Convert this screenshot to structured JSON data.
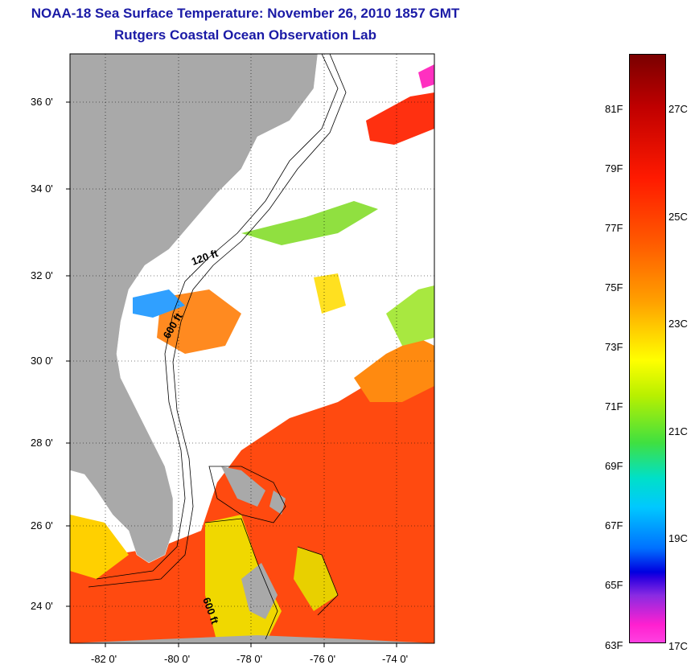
{
  "title": {
    "line1": "NOAA-18 Sea Surface Temperature:  November 26, 2010 1857 GMT",
    "line2": "Rutgers Coastal Ocean Observation Lab"
  },
  "map": {
    "lat_ticks": [
      "36 0'",
      "34 0'",
      "32 0'",
      "30 0'",
      "28 0'",
      "26 0'",
      "24 0'"
    ],
    "lon_ticks": [
      "-82 0'",
      "-80 0'",
      "-78 0'",
      "-76 0'",
      "-74 0'"
    ],
    "contour_labels": [
      "120 ft",
      "600 ft",
      "600 ft"
    ],
    "colors": {
      "land": "#a9a9a9",
      "cloud": "#ffffff",
      "warm": "#ff4a10",
      "cool": "#40c040"
    }
  },
  "colorbar": {
    "fahrenheit": [
      "81F",
      "79F",
      "77F",
      "75F",
      "73F",
      "71F",
      "69F",
      "67F",
      "65F",
      "63F"
    ],
    "celsius": [
      "27C",
      "25C",
      "23C",
      "21C",
      "19C",
      "17C"
    ]
  }
}
